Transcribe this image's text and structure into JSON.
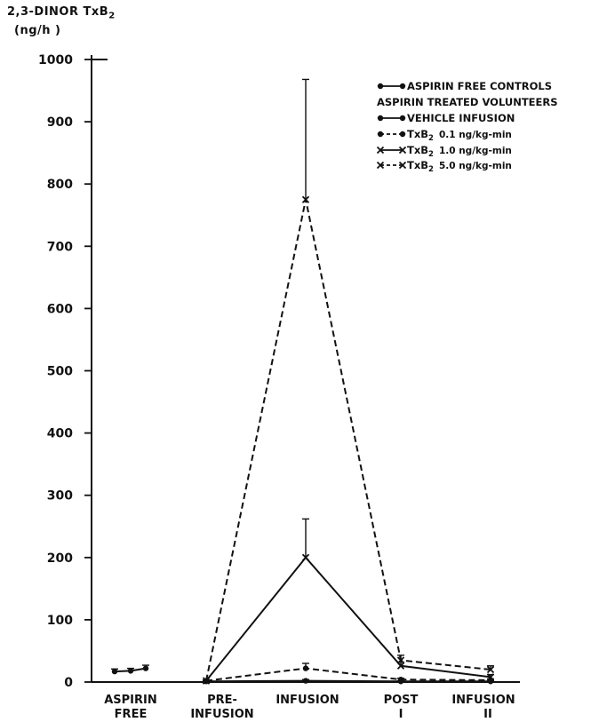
{
  "chart_data": {
    "type": "line",
    "ylabel_line1": "2,3-DINOR TxB",
    "ylabel_sub": "2",
    "ylabel_line2": "(ng/h )",
    "ylim": [
      0,
      1000
    ],
    "yticks": [
      "0",
      "100",
      "200",
      "300",
      "400",
      "500",
      "600",
      "700",
      "800",
      "900",
      "1000"
    ],
    "x_groups": [
      {
        "line1": "ASPIRIN",
        "line2": "FREE"
      },
      {
        "line1": "PRE-",
        "line2": "INFUSION"
      },
      {
        "line1": "INFUSION",
        "line2": ""
      },
      {
        "line1": "POST",
        "line2": "I"
      },
      {
        "line1": "INFUSION",
        "line2": ""
      },
      {
        "line1": "",
        "line2": "II"
      }
    ],
    "legend": {
      "heading": "ASPIRIN TREATED VOLUNTEERS",
      "entries": [
        {
          "label": "ASPIRIN FREE CONTROLS"
        },
        {
          "label": "VEHICLE INFUSION"
        },
        {
          "label": "TxB",
          "sub": "2",
          "dose": "0.1 ng/kg-min"
        },
        {
          "label": "TxB",
          "sub": "2",
          "dose": "1.0 ng/kg-min"
        },
        {
          "label": "TxB",
          "sub": "2",
          "dose": "5.0 ng/kg-min"
        }
      ]
    },
    "series": [
      {
        "name": "ASPIRIN FREE CONTROLS",
        "style": "solid",
        "marker": "dot",
        "x": [
          "ASPIRIN FREE 1",
          "ASPIRIN FREE 2",
          "ASPIRIN FREE 3"
        ],
        "values": [
          17,
          18,
          22
        ],
        "errors": [
          4,
          4,
          5
        ]
      },
      {
        "name": "VEHICLE INFUSION",
        "style": "solid",
        "marker": "dot",
        "x": [
          "PRE-INFUSION",
          "INFUSION",
          "POST INFUSION I",
          "POST INFUSION II"
        ],
        "values": [
          1,
          2,
          1,
          1
        ],
        "errors": [
          1,
          2,
          1,
          1
        ]
      },
      {
        "name": "TxB2 0.1 ng/kg-min",
        "style": "dashed",
        "marker": "dot",
        "x": [
          "PRE-INFUSION",
          "INFUSION",
          "POST INFUSION I",
          "POST INFUSION II"
        ],
        "values": [
          2,
          22,
          4,
          3
        ],
        "errors": [
          1,
          8,
          2,
          2
        ]
      },
      {
        "name": "TxB2 1.0 ng/kg-min",
        "style": "solid",
        "marker": "x",
        "x": [
          "PRE-INFUSION",
          "INFUSION",
          "POST INFUSION I",
          "POST INFUSION II"
        ],
        "values": [
          2,
          200,
          26,
          8
        ],
        "errors": [
          1,
          62,
          6,
          4
        ]
      },
      {
        "name": "TxB2 5.0 ng/kg-min",
        "style": "dashed",
        "marker": "x",
        "x": [
          "PRE-INFUSION",
          "INFUSION",
          "POST INFUSION I",
          "POST INFUSION II"
        ],
        "values": [
          2,
          775,
          35,
          20
        ],
        "errors": [
          1,
          193,
          8,
          6
        ]
      }
    ]
  }
}
